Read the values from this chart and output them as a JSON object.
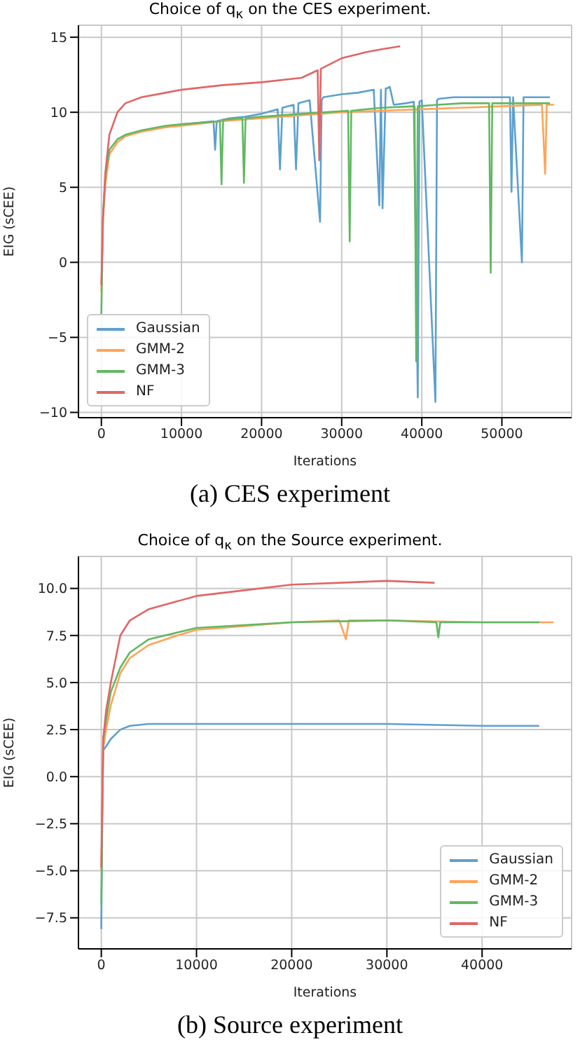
{
  "chart_data": [
    {
      "type": "line",
      "title": "Choice of q$_{κ}$ on the CES experiment.",
      "xlabel": "Iterations",
      "ylabel": "EIG (sCEE)",
      "xlim": [
        -2860,
        58700
      ],
      "ylim": [
        -10.35,
        15.8
      ],
      "xticks": [
        0,
        10000,
        20000,
        30000,
        40000,
        50000
      ],
      "yticks": [
        -10,
        -5,
        0,
        5,
        10,
        15
      ],
      "grid": true,
      "legend": "bottom left",
      "annotations": [
        "(a) CES experiment"
      ],
      "series": [
        {
          "name": "Gaussian",
          "color": "#5da0cf",
          "x": [
            8000,
            10000,
            12000,
            14000,
            14200,
            14400,
            16000,
            18000,
            20000,
            22000,
            22300,
            22600,
            24000,
            24300,
            24600,
            26000,
            27300,
            27500,
            27700,
            30000,
            32000,
            34000,
            34700,
            34900,
            35100,
            35500,
            35700,
            36000,
            36500,
            38000,
            39000,
            39500,
            39700,
            40000,
            41700,
            41900,
            42100,
            44000,
            46000,
            48000,
            50000,
            51000,
            51200,
            51400,
            52500,
            52700,
            52900,
            54000,
            56000
          ],
          "values": [
            9,
            9.2,
            9.3,
            9.4,
            7.5,
            9.4,
            9.6,
            9.7,
            9.9,
            10.2,
            6.2,
            10.3,
            10.5,
            6.2,
            10.6,
            10.8,
            2.7,
            10.8,
            11,
            11.2,
            11.3,
            11.5,
            3.8,
            11.5,
            3.6,
            11.6,
            11.6,
            11.7,
            10.5,
            10.6,
            10.7,
            -9,
            10.7,
            10.8,
            -9.3,
            10.8,
            10.9,
            11,
            11,
            11,
            11,
            11,
            4.7,
            11,
            0,
            11,
            11,
            11,
            11
          ]
        },
        {
          "name": "GMM-2",
          "color": "#ffa456",
          "x": [
            0,
            200,
            500,
            1000,
            2000,
            3000,
            5000,
            8000,
            10000,
            15000,
            20000,
            25000,
            30000,
            35000,
            40000,
            45000,
            50000,
            55000,
            55400,
            55600,
            56500
          ],
          "values": [
            -2,
            2.8,
            5.2,
            7.2,
            8,
            8.4,
            8.7,
            9,
            9.1,
            9.4,
            9.6,
            9.8,
            10,
            10.1,
            10.2,
            10.3,
            10.4,
            10.5,
            5.9,
            10.5,
            10.5
          ]
        },
        {
          "name": "GMM-3",
          "color": "#62b862",
          "x": [
            0,
            200,
            500,
            1000,
            2000,
            3000,
            5000,
            8000,
            10000,
            14800,
            15000,
            15200,
            17600,
            17800,
            18000,
            20000,
            25000,
            30800,
            31000,
            31200,
            35000,
            39100,
            39300,
            39500,
            42000,
            45000,
            48400,
            48600,
            48800,
            52000,
            56000
          ],
          "values": [
            -3.5,
            3,
            5.8,
            7.5,
            8.2,
            8.5,
            8.8,
            9.1,
            9.2,
            9.4,
            5.2,
            9.5,
            9.6,
            5.3,
            9.6,
            9.7,
            9.9,
            10.1,
            1.4,
            10.1,
            10.3,
            10.4,
            -6.6,
            10.4,
            10.5,
            10.6,
            10.6,
            -0.7,
            10.6,
            10.6,
            10.6
          ]
        },
        {
          "name": "NF",
          "color": "#e06666",
          "x": [
            0,
            200,
            500,
            1000,
            2000,
            3000,
            5000,
            8000,
            10000,
            15000,
            20000,
            25000,
            27000,
            27200,
            27400,
            30000,
            33000,
            35000,
            37300
          ],
          "values": [
            -1.5,
            3,
            6,
            8.5,
            10,
            10.6,
            11,
            11.3,
            11.5,
            11.8,
            12,
            12.3,
            12.8,
            6.8,
            12.9,
            13.6,
            14,
            14.2,
            14.4
          ]
        }
      ]
    },
    {
      "type": "line",
      "title": "Choice of q$_{κ}$ on the Source experiment.",
      "xlabel": "Iterations",
      "ylabel": "EIG (sCEE)",
      "xlim": [
        -2400,
        49400
      ],
      "ylim": [
        -9.15,
        11.7
      ],
      "xticks": [
        0,
        10000,
        20000,
        30000,
        40000
      ],
      "yticks": [
        -7.5,
        {
          "value": -5,
          "label": "−5.0"
        },
        -2.5,
        {
          "value": 0,
          "label": "0.0"
        },
        2.5,
        {
          "value": 5,
          "label": "5.0"
        },
        7.5,
        {
          "value": 10,
          "label": "10.0"
        }
      ],
      "grid": true,
      "legend": "bottom right",
      "annotations": [
        "(b) Source experiment"
      ],
      "series": [
        {
          "name": "Gaussian",
          "color": "#5da0cf",
          "x": [
            0,
            100,
            200,
            500,
            1000,
            2000,
            3000,
            5000,
            10000,
            20000,
            30000,
            40000,
            46000
          ],
          "values": [
            -8.1,
            -2,
            1.4,
            1.6,
            2,
            2.5,
            2.7,
            2.8,
            2.8,
            2.8,
            2.8,
            2.7,
            2.7
          ]
        },
        {
          "name": "GMM-2",
          "color": "#ffa456",
          "x": [
            0,
            200,
            500,
            1000,
            2000,
            3000,
            5000,
            8000,
            10000,
            15000,
            20000,
            25000,
            25700,
            26000,
            30000,
            40000,
            47500
          ],
          "values": [
            -5,
            1.5,
            2.5,
            3.8,
            5.5,
            6.3,
            7,
            7.5,
            7.8,
            8,
            8.2,
            8.3,
            7.3,
            8.3,
            8.3,
            8.2,
            8.2
          ]
        },
        {
          "name": "GMM-3",
          "color": "#62b862",
          "x": [
            0,
            200,
            500,
            1000,
            2000,
            3000,
            5000,
            10000,
            20000,
            30000,
            35200,
            35400,
            35600,
            46000
          ],
          "values": [
            -6.8,
            2,
            3,
            4.5,
            5.8,
            6.6,
            7.3,
            7.9,
            8.2,
            8.3,
            8.2,
            7.4,
            8.2,
            8.2
          ]
        },
        {
          "name": "NF",
          "color": "#e06666",
          "x": [
            0,
            200,
            500,
            1000,
            2000,
            3000,
            5000,
            10000,
            15000,
            20000,
            25000,
            30000,
            35000
          ],
          "values": [
            -4.8,
            2,
            3.5,
            5,
            7.5,
            8.3,
            8.9,
            9.6,
            9.9,
            10.2,
            10.3,
            10.4,
            10.3
          ]
        }
      ]
    }
  ]
}
